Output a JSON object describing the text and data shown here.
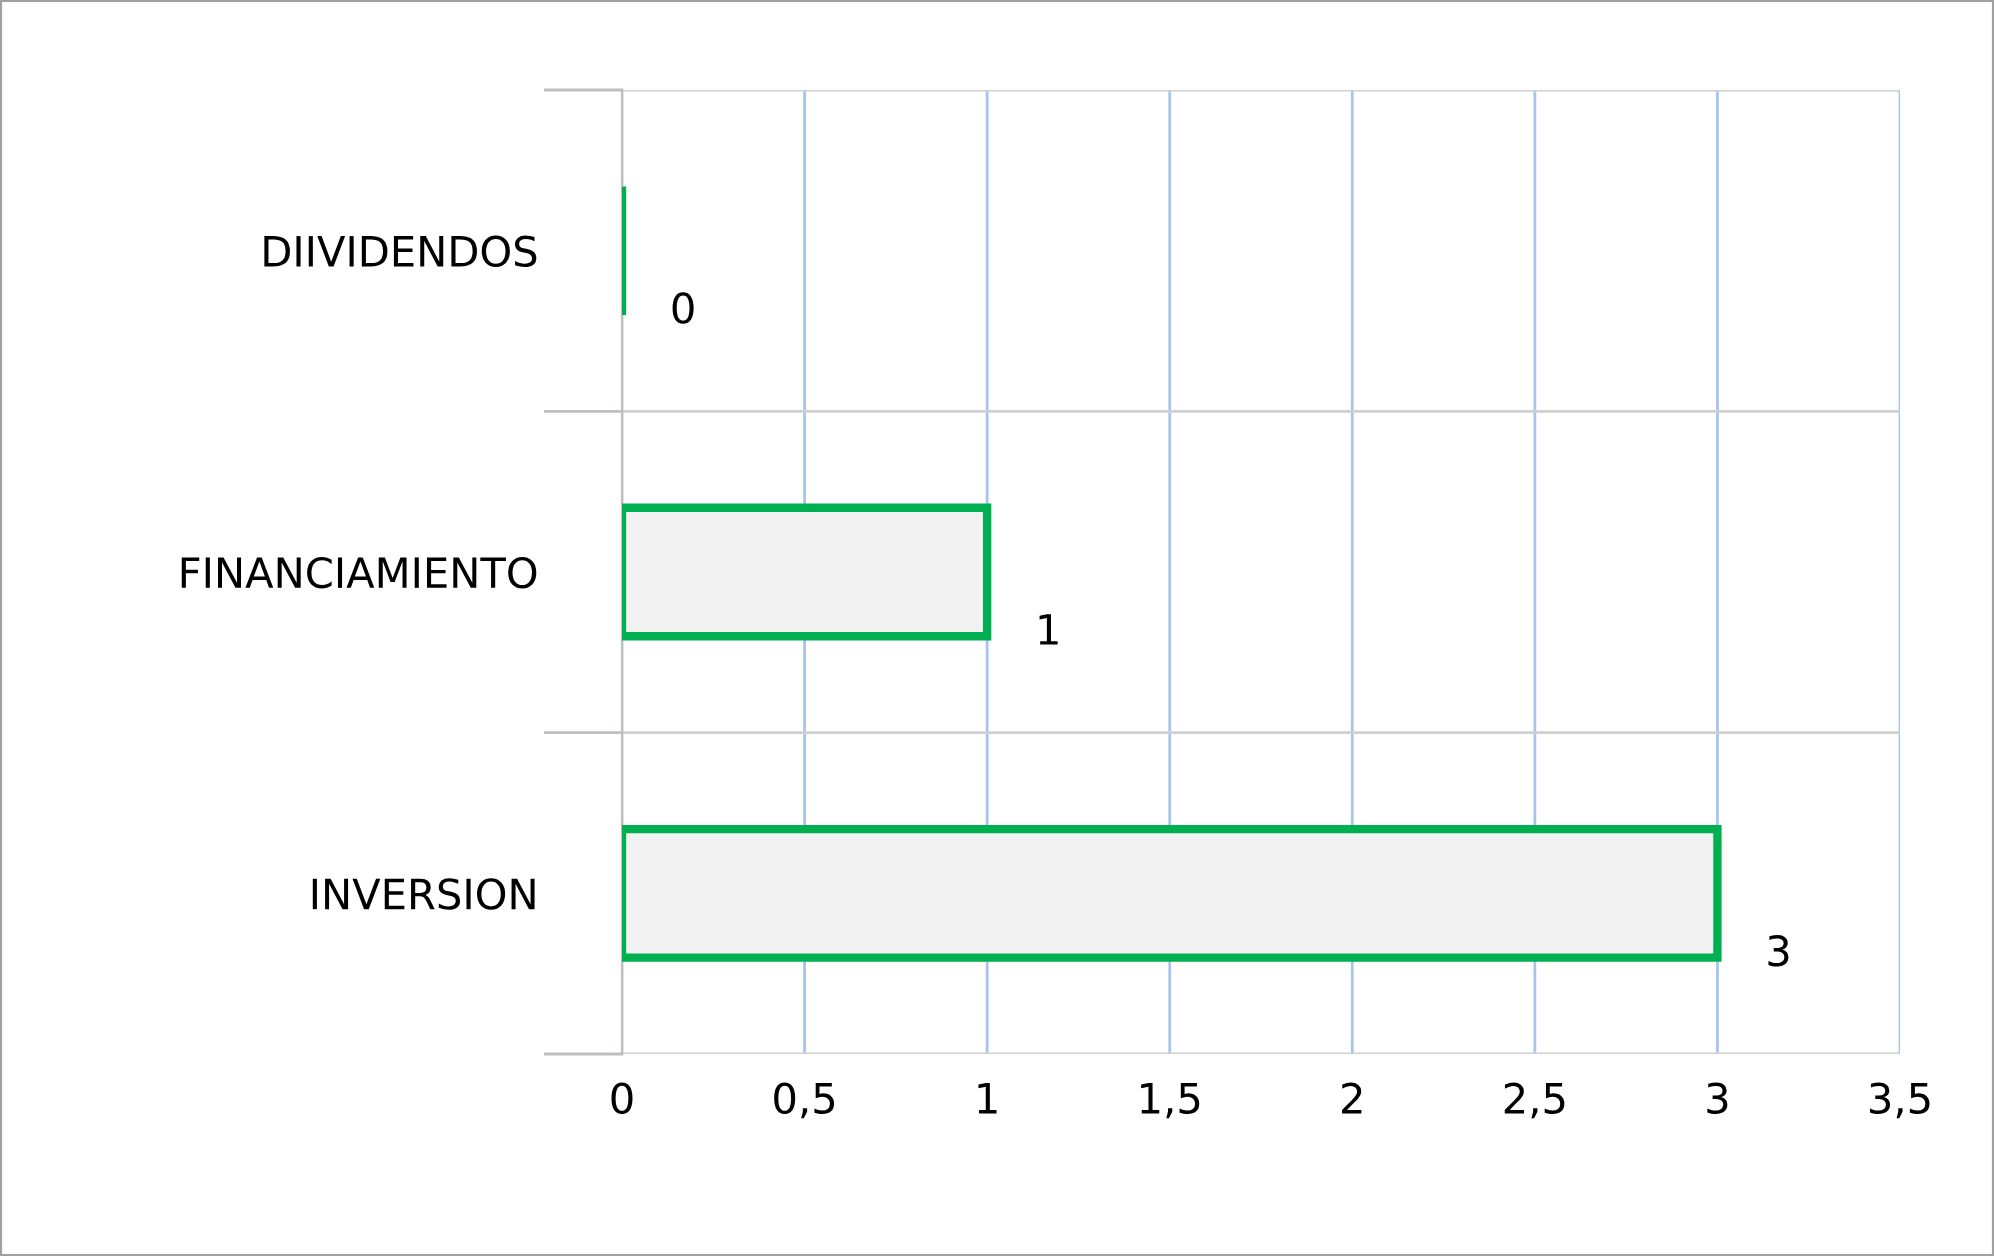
{
  "chart_data": {
    "type": "bar",
    "orientation": "horizontal",
    "categories": [
      "DIIVIDENDOS",
      "FINANCIAMIENTO",
      "INVERSION"
    ],
    "values": [
      0,
      1,
      3
    ],
    "color": "#00b050",
    "xlim": [
      0,
      3.5
    ],
    "xticks": [
      0,
      {
        "value": 0.5,
        "label": "0,5"
      },
      1,
      {
        "value": 1.5,
        "label": "1,5"
      },
      2,
      {
        "value": 2.5,
        "label": "2,5"
      },
      3,
      {
        "value": 3.5,
        "label": "3,5"
      }
    ],
    "data_labels": true,
    "grid": true
  }
}
